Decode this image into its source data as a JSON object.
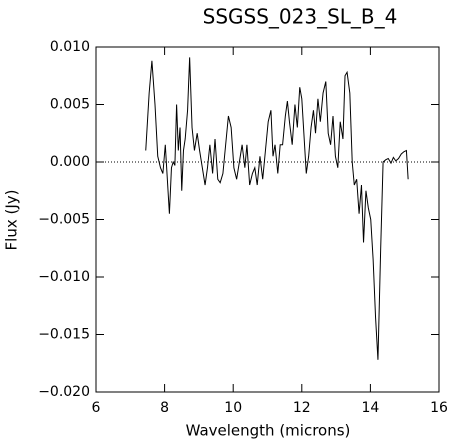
{
  "chart_data": {
    "type": "line",
    "title": "SSGSS_023_SL_B_4",
    "x_label": "Wavelength (microns)",
    "y_label": "Flux (Jy)",
    "x": [
      7.45,
      7.55,
      7.63,
      7.72,
      7.8,
      7.88,
      7.95,
      8.02,
      8.08,
      8.14,
      8.2,
      8.25,
      8.3,
      8.35,
      8.4,
      8.45,
      8.5,
      8.55,
      8.6,
      8.67,
      8.73,
      8.8,
      8.87,
      8.95,
      9.02,
      9.1,
      9.18,
      9.25,
      9.32,
      9.4,
      9.47,
      9.55,
      9.62,
      9.7,
      9.78,
      9.86,
      9.94,
      10.02,
      10.1,
      10.18,
      10.26,
      10.34,
      10.4,
      10.48,
      10.56,
      10.63,
      10.7,
      10.78,
      10.86,
      10.94,
      11.02,
      11.1,
      11.16,
      11.22,
      11.3,
      11.37,
      11.44,
      11.52,
      11.58,
      11.64,
      11.72,
      11.8,
      11.87,
      11.94,
      12.0,
      12.06,
      12.13,
      12.2,
      12.27,
      12.34,
      12.4,
      12.47,
      12.54,
      12.62,
      12.7,
      12.77,
      12.84,
      12.91,
      12.98,
      13.05,
      13.12,
      13.2,
      13.26,
      13.32,
      13.4,
      13.47,
      13.53,
      13.6,
      13.67,
      13.74,
      13.8,
      13.87,
      13.94,
      14.01,
      14.08,
      14.15,
      14.22,
      14.3,
      14.37,
      14.45,
      14.52,
      14.6,
      14.67,
      14.74,
      14.82,
      14.9,
      14.98,
      15.05,
      15.1
    ],
    "series": [
      {
        "color": "#000000",
        "values": [
          0.001,
          0.006,
          0.0088,
          0.005,
          0.0005,
          -0.0005,
          -0.001,
          0.0015,
          -0.0015,
          -0.0045,
          -0.0005,
          0.0,
          -0.0003,
          0.005,
          0.001,
          0.003,
          -0.0025,
          0.001,
          0.002,
          0.0045,
          0.0091,
          0.003,
          0.001,
          0.0025,
          0.001,
          -0.0005,
          -0.002,
          -0.0005,
          0.0015,
          -0.001,
          0.002,
          -0.0015,
          -0.0018,
          -0.001,
          0.0015,
          0.004,
          0.003,
          -0.0005,
          -0.0015,
          0.0,
          0.0015,
          -0.0005,
          0.0015,
          -0.002,
          -0.001,
          -0.0005,
          -0.002,
          0.0005,
          -0.0015,
          0.001,
          0.0035,
          0.0045,
          0.0005,
          0.0015,
          -0.001,
          0.0015,
          0.0015,
          0.004,
          0.0053,
          0.0035,
          0.0015,
          0.005,
          0.003,
          0.0065,
          0.0055,
          0.0025,
          -0.001,
          0.0005,
          0.003,
          0.0045,
          0.0025,
          0.0055,
          0.0035,
          0.006,
          0.007,
          0.0025,
          0.0015,
          0.004,
          0.0005,
          -0.0005,
          0.0035,
          0.002,
          0.0075,
          0.0078,
          0.006,
          0.0,
          -0.002,
          -0.0015,
          -0.0045,
          -0.002,
          -0.007,
          -0.0025,
          -0.004,
          -0.005,
          -0.0085,
          -0.0135,
          -0.0172,
          -0.0075,
          0.0,
          0.0002,
          0.0003,
          -0.0001,
          0.0004,
          0.0001,
          0.0003,
          0.0007,
          0.0009,
          0.001,
          -0.0015
        ]
      }
    ],
    "xlim": [
      6,
      16
    ],
    "xticks": [
      6,
      8,
      10,
      12,
      14,
      16
    ],
    "ylim": [
      -0.02,
      0.01
    ],
    "yticks": [
      {
        "value": -0.02,
        "label": "−0.020"
      },
      {
        "value": -0.015,
        "label": "−0.015"
      },
      {
        "value": -0.01,
        "label": "−0.010"
      },
      {
        "value": -0.005,
        "label": "−0.005"
      },
      {
        "value": 0,
        "label": "0.000"
      },
      {
        "value": 0.005,
        "label": "0.005"
      },
      {
        "value": 0.01,
        "label": "0.010"
      }
    ],
    "reference_line": 0
  }
}
